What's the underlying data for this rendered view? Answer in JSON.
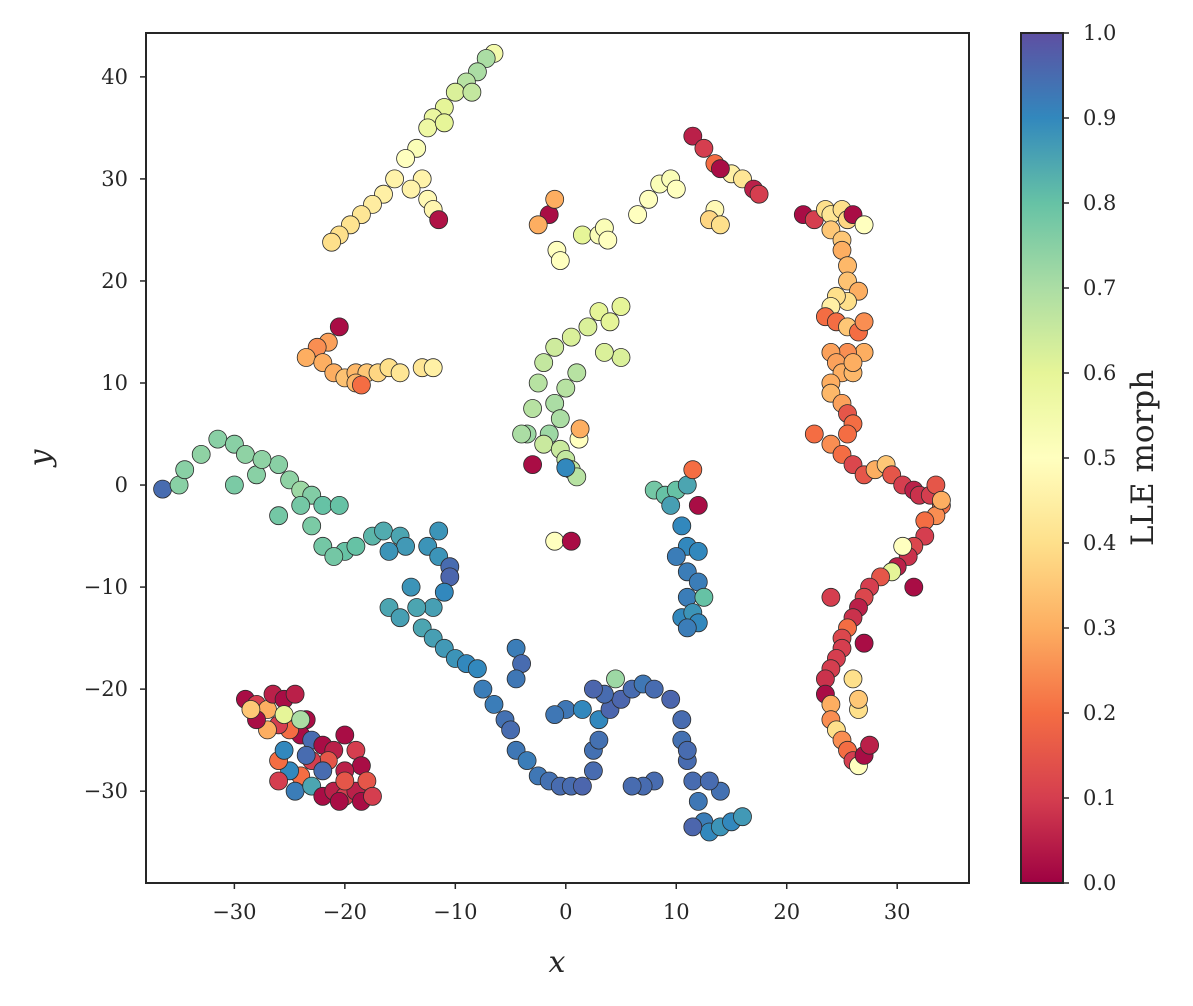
{
  "chart_data": {
    "type": "scatter",
    "xlabel": "x",
    "ylabel": "y",
    "xlim": [
      -38,
      36.5
    ],
    "ylim": [
      -39,
      44.3
    ],
    "xticks": [
      -30,
      -20,
      -10,
      0,
      10,
      20,
      30
    ],
    "yticks": [
      -30,
      -20,
      -10,
      0,
      10,
      20,
      30,
      40
    ],
    "xtick_labels": [
      "−30",
      "−20",
      "−10",
      "0",
      "10",
      "20",
      "30"
    ],
    "ytick_labels": [
      "−30",
      "−20",
      "−10",
      "0",
      "10",
      "20",
      "30",
      "40"
    ],
    "grid": false,
    "colorbar": {
      "label": "LLE morph",
      "colormap": "Spectral",
      "range": [
        0,
        1
      ],
      "ticks": [
        0,
        0.1,
        0.2,
        0.3,
        0.4,
        0.5,
        0.6,
        0.7,
        0.8,
        0.9,
        1.0
      ],
      "tick_labels": [
        "0.0",
        "0.1",
        "0.2",
        "0.3",
        "0.4",
        "0.5",
        "0.6",
        "0.7",
        "0.8",
        "0.9",
        "1.0"
      ]
    },
    "marker_edge_color": "#2b2b2b",
    "points": [
      [
        -6.5,
        42.3,
        0.55
      ],
      [
        -7.2,
        41.8,
        0.7
      ],
      [
        -8,
        40.5,
        0.7
      ],
      [
        -9,
        39.5,
        0.68
      ],
      [
        -10,
        38.5,
        0.62
      ],
      [
        -11,
        37,
        0.6
      ],
      [
        -12,
        36,
        0.58
      ],
      [
        -12.5,
        35,
        0.57
      ],
      [
        -13.5,
        33,
        0.52
      ],
      [
        -14.5,
        32,
        0.5
      ],
      [
        -15.5,
        30,
        0.46
      ],
      [
        -16.5,
        28.5,
        0.45
      ],
      [
        -17.5,
        27.5,
        0.44
      ],
      [
        -18.5,
        26.5,
        0.42
      ],
      [
        -19.5,
        25.5,
        0.41
      ],
      [
        -20.5,
        24.5,
        0.4
      ],
      [
        -21.2,
        23.8,
        0.4
      ],
      [
        -12.5,
        28,
        0.48
      ],
      [
        -12,
        27,
        0.47
      ],
      [
        -11.5,
        26,
        0.03
      ],
      [
        -13,
        30,
        0.46
      ],
      [
        -14,
        29,
        0.46
      ],
      [
        -8.5,
        38.5,
        0.66
      ],
      [
        -11,
        35.5,
        0.6
      ],
      [
        -1.5,
        26.5,
        0.02
      ],
      [
        -2.5,
        25.5,
        0.3
      ],
      [
        -1,
        28,
        0.3
      ],
      [
        -0.8,
        23,
        0.5
      ],
      [
        -0.5,
        22,
        0.5
      ],
      [
        1.5,
        24.5,
        0.6
      ],
      [
        3,
        24.5,
        0.52
      ],
      [
        3.5,
        25.2,
        0.52
      ],
      [
        3.8,
        24,
        0.5
      ],
      [
        6.5,
        26.5,
        0.5
      ],
      [
        7.5,
        28,
        0.5
      ],
      [
        8.5,
        29.5,
        0.52
      ],
      [
        9.5,
        30,
        0.52
      ],
      [
        10,
        29,
        0.5
      ],
      [
        13.5,
        27,
        0.48
      ],
      [
        13,
        26,
        0.38
      ],
      [
        14,
        25.5,
        0.4
      ],
      [
        11.5,
        34.2,
        0.05
      ],
      [
        12.5,
        33,
        0.1
      ],
      [
        13.5,
        31.5,
        0.2
      ],
      [
        15,
        30.5,
        0.45
      ],
      [
        16,
        30,
        0.42
      ],
      [
        17,
        29,
        0.05
      ],
      [
        17.5,
        28.5,
        0.1
      ],
      [
        14,
        31,
        0.02
      ],
      [
        -20.5,
        15.5,
        0.02
      ],
      [
        -21.5,
        14,
        0.28
      ],
      [
        -22.5,
        13.5,
        0.25
      ],
      [
        -23.5,
        12.5,
        0.3
      ],
      [
        -22,
        12,
        0.3
      ],
      [
        -21,
        11,
        0.3
      ],
      [
        -20,
        10.5,
        0.34
      ],
      [
        -19,
        11,
        0.32
      ],
      [
        -18,
        11,
        0.35
      ],
      [
        -17,
        11,
        0.38
      ],
      [
        -16,
        11.5,
        0.4
      ],
      [
        -15,
        11,
        0.42
      ],
      [
        -13,
        11.5,
        0.42
      ],
      [
        -12,
        11.5,
        0.45
      ],
      [
        -19,
        10,
        0.32
      ],
      [
        -18.5,
        9.8,
        0.2
      ],
      [
        -3,
        7.5,
        0.68
      ],
      [
        -2.5,
        10,
        0.68
      ],
      [
        -2,
        12,
        0.66
      ],
      [
        -1,
        13.5,
        0.64
      ],
      [
        0.5,
        14.5,
        0.62
      ],
      [
        2,
        15.5,
        0.62
      ],
      [
        3,
        17,
        0.6
      ],
      [
        4,
        16,
        0.6
      ],
      [
        5,
        17.5,
        0.6
      ],
      [
        5,
        12.5,
        0.62
      ],
      [
        3.5,
        13,
        0.62
      ],
      [
        1,
        11,
        0.68
      ],
      [
        0,
        9.5,
        0.68
      ],
      [
        -1,
        8,
        0.7
      ],
      [
        -0.5,
        6.5,
        0.7
      ],
      [
        -1.5,
        5,
        0.72
      ],
      [
        -3.5,
        5,
        0.72
      ],
      [
        -4,
        5,
        0.7
      ],
      [
        -2,
        4,
        0.65
      ],
      [
        -0.5,
        3.5,
        0.65
      ],
      [
        0,
        2.5,
        0.66
      ],
      [
        0.5,
        1.5,
        0.66
      ],
      [
        1,
        0.8,
        0.68
      ],
      [
        1.2,
        4.5,
        0.5
      ],
      [
        1.3,
        5.5,
        0.3
      ],
      [
        -3,
        2,
        0.02
      ],
      [
        0,
        1.7,
        0.9
      ],
      [
        -1,
        -5.5,
        0.5
      ],
      [
        0.5,
        -5.5,
        0.02
      ],
      [
        -36.5,
        -0.4,
        0.95
      ],
      [
        -35,
        0,
        0.75
      ],
      [
        -34.5,
        1.5,
        0.75
      ],
      [
        -33,
        3,
        0.74
      ],
      [
        -31.5,
        4.5,
        0.75
      ],
      [
        -30,
        4,
        0.75
      ],
      [
        -29,
        3,
        0.74
      ],
      [
        -28,
        1,
        0.75
      ],
      [
        -26,
        2,
        0.75
      ],
      [
        -25,
        0.5,
        0.74
      ],
      [
        -24,
        -0.5,
        0.72
      ],
      [
        -23,
        -1,
        0.76
      ],
      [
        -22,
        -2,
        0.8
      ],
      [
        -20.5,
        -2,
        0.8
      ],
      [
        -24,
        -2,
        0.78
      ],
      [
        -23,
        -4,
        0.77
      ],
      [
        -22,
        -6,
        0.78
      ],
      [
        -20,
        -6.5,
        0.8
      ],
      [
        -19,
        -6,
        0.8
      ],
      [
        -17.5,
        -5,
        0.82
      ],
      [
        -16.5,
        -4.5,
        0.84
      ],
      [
        -15,
        -5,
        0.85
      ],
      [
        -14.5,
        -6,
        0.87
      ],
      [
        -16,
        -6.5,
        0.88
      ],
      [
        -21,
        -7,
        0.78
      ],
      [
        -26,
        -3,
        0.78
      ],
      [
        -30,
        0,
        0.77
      ],
      [
        -27.5,
        2.5,
        0.74
      ],
      [
        -11.5,
        -4.5,
        0.88
      ],
      [
        -12.5,
        -6,
        0.88
      ],
      [
        -11.5,
        -7,
        0.88
      ],
      [
        -10.5,
        -8,
        0.95
      ],
      [
        -10.5,
        -9,
        0.96
      ],
      [
        -11,
        -10.5,
        0.9
      ],
      [
        -12,
        -12,
        0.86
      ],
      [
        -13.5,
        -12,
        0.85
      ],
      [
        -14,
        -10,
        0.88
      ],
      [
        -16,
        -12,
        0.85
      ],
      [
        -15,
        -13,
        0.86
      ],
      [
        -13,
        -14,
        0.85
      ],
      [
        -12,
        -15,
        0.86
      ],
      [
        -11,
        -16,
        0.87
      ],
      [
        -10,
        -17,
        0.88
      ],
      [
        -9,
        -17.5,
        0.9
      ],
      [
        -8,
        -18,
        0.9
      ],
      [
        -7.5,
        -20,
        0.92
      ],
      [
        -6.5,
        -21.5,
        0.92
      ],
      [
        -5.5,
        -23,
        0.94
      ],
      [
        -5,
        -24,
        0.95
      ],
      [
        -4.5,
        -26,
        0.93
      ],
      [
        -3.5,
        -27,
        0.92
      ],
      [
        -2.5,
        -28.5,
        0.93
      ],
      [
        -1.5,
        -29,
        0.94
      ],
      [
        -0.5,
        -29.5,
        0.95
      ],
      [
        0.5,
        -29.5,
        0.95
      ],
      [
        1.5,
        -29.5,
        0.96
      ],
      [
        2.5,
        -28,
        0.95
      ],
      [
        2.5,
        -26,
        0.94
      ],
      [
        3,
        -25,
        0.94
      ],
      [
        3,
        -23,
        0.9
      ],
      [
        4,
        -22,
        0.96
      ],
      [
        5,
        -21,
        0.96
      ],
      [
        6,
        -20,
        0.95
      ],
      [
        7,
        -19.5,
        0.93
      ],
      [
        8,
        -20,
        0.95
      ],
      [
        9.5,
        -21,
        0.96
      ],
      [
        10.5,
        -23,
        0.95
      ],
      [
        10.5,
        -25,
        0.94
      ],
      [
        11,
        -27,
        0.95
      ],
      [
        11.5,
        -29,
        0.95
      ],
      [
        12,
        -31,
        0.93
      ],
      [
        12.5,
        -33,
        0.92
      ],
      [
        13,
        -34,
        0.9
      ],
      [
        14,
        -33.5,
        0.88
      ],
      [
        15,
        -33,
        0.9
      ],
      [
        16,
        -32.5,
        0.87
      ],
      [
        14,
        -30,
        0.94
      ],
      [
        13,
        -29,
        0.95
      ],
      [
        8,
        -29,
        0.95
      ],
      [
        7,
        -29.5,
        0.95
      ],
      [
        6,
        -29.5,
        0.95
      ],
      [
        11.5,
        -33.5,
        0.96
      ],
      [
        -4.5,
        -16,
        0.92
      ],
      [
        -4,
        -17.5,
        0.95
      ],
      [
        -4.5,
        -19,
        0.93
      ],
      [
        0,
        -22,
        0.93
      ],
      [
        1.5,
        -22,
        0.9
      ],
      [
        4.5,
        -19,
        0.72
      ],
      [
        3.5,
        -20.5,
        0.95
      ],
      [
        -1,
        -22.5,
        0.93
      ],
      [
        2.5,
        -20,
        0.96
      ],
      [
        11,
        -26,
        0.95
      ],
      [
        8,
        -0.5,
        0.78
      ],
      [
        9,
        -1,
        0.8
      ],
      [
        10,
        -0.5,
        0.8
      ],
      [
        11,
        0,
        0.85
      ],
      [
        11.5,
        1.5,
        0.2
      ],
      [
        12,
        -2,
        0.02
      ],
      [
        9.5,
        -2,
        0.86
      ],
      [
        10.5,
        -4,
        0.9
      ],
      [
        11,
        -6,
        0.9
      ],
      [
        12,
        -6.5,
        0.9
      ],
      [
        10,
        -7,
        0.92
      ],
      [
        11,
        -8.5,
        0.92
      ],
      [
        12,
        -9.5,
        0.92
      ],
      [
        11,
        -11,
        0.92
      ],
      [
        10.5,
        -13,
        0.9
      ],
      [
        11.5,
        -12.5,
        0.88
      ],
      [
        12.5,
        -11,
        0.8
      ],
      [
        12,
        -13.5,
        0.9
      ],
      [
        11,
        -14,
        0.92
      ],
      [
        -29,
        -21,
        0.02
      ],
      [
        -28,
        -21.5,
        0.1
      ],
      [
        -27,
        -22,
        0.3
      ],
      [
        -26.5,
        -20.5,
        0.05
      ],
      [
        -25.5,
        -21,
        0.02
      ],
      [
        -24.5,
        -20.5,
        0.05
      ],
      [
        -23.5,
        -23,
        0.02
      ],
      [
        -24,
        -24.5,
        0.02
      ],
      [
        -25,
        -24,
        0.2
      ],
      [
        -26,
        -23.5,
        0.1
      ],
      [
        -27,
        -24,
        0.3
      ],
      [
        -28,
        -23,
        0.02
      ],
      [
        -28.5,
        -22,
        0.35
      ],
      [
        -25.5,
        -22.5,
        0.6
      ],
      [
        -24,
        -23,
        0.7
      ],
      [
        -23,
        -25,
        0.95
      ],
      [
        -22,
        -25.5,
        0.02
      ],
      [
        -21,
        -26,
        0.05
      ],
      [
        -20,
        -24.5,
        0.02
      ],
      [
        -19,
        -26,
        0.1
      ],
      [
        -18.5,
        -27.5,
        0.02
      ],
      [
        -20,
        -28,
        0.05
      ],
      [
        -21.5,
        -27,
        0.15
      ],
      [
        -23,
        -27,
        0.1
      ],
      [
        -24,
        -28.5,
        0.2
      ],
      [
        -25,
        -28,
        0.9
      ],
      [
        -26,
        -29,
        0.1
      ],
      [
        -26,
        -27,
        0.2
      ],
      [
        -24.5,
        -30,
        0.92
      ],
      [
        -23,
        -29.5,
        0.85
      ],
      [
        -22,
        -30.5,
        0.02
      ],
      [
        -21,
        -30,
        0.05
      ],
      [
        -20,
        -30.5,
        0.1
      ],
      [
        -19,
        -30,
        0.05
      ],
      [
        -18,
        -29,
        0.15
      ],
      [
        -18.5,
        -31,
        0.02
      ],
      [
        -20,
        -29,
        0.15
      ],
      [
        -22,
        -28,
        0.95
      ],
      [
        -23.5,
        -26.5,
        0.95
      ],
      [
        -25.5,
        -26,
        0.9
      ],
      [
        -20.5,
        -31,
        0.02
      ],
      [
        -17.5,
        -30.5,
        0.1
      ],
      [
        21.5,
        26.5,
        0.02
      ],
      [
        22.5,
        26,
        0.1
      ],
      [
        23.5,
        27,
        0.4
      ],
      [
        24,
        26.5,
        0.42
      ],
      [
        25,
        27,
        0.4
      ],
      [
        25.5,
        26,
        0.38
      ],
      [
        26,
        26.5,
        0.02
      ],
      [
        27,
        25.5,
        0.5
      ],
      [
        24,
        25,
        0.35
      ],
      [
        25,
        24,
        0.35
      ],
      [
        25,
        23,
        0.3
      ],
      [
        25.5,
        21.5,
        0.32
      ],
      [
        25.5,
        20,
        0.34
      ],
      [
        26.5,
        19,
        0.3
      ],
      [
        25.5,
        18,
        0.4
      ],
      [
        24.5,
        18.5,
        0.4
      ],
      [
        24,
        17.5,
        0.45
      ],
      [
        23.5,
        16.5,
        0.2
      ],
      [
        24.5,
        16,
        0.2
      ],
      [
        25.5,
        15.5,
        0.35
      ],
      [
        26.5,
        15,
        0.2
      ],
      [
        27,
        13,
        0.3
      ],
      [
        25.5,
        13,
        0.25
      ],
      [
        24,
        13,
        0.28
      ],
      [
        24.5,
        12,
        0.28
      ],
      [
        25,
        11,
        0.3
      ],
      [
        24,
        10,
        0.3
      ],
      [
        24,
        9,
        0.32
      ],
      [
        25,
        8,
        0.28
      ],
      [
        25.5,
        7,
        0.15
      ],
      [
        26,
        6,
        0.2
      ],
      [
        25.5,
        5,
        0.2
      ],
      [
        24,
        4,
        0.25
      ],
      [
        22.5,
        5,
        0.2
      ],
      [
        25,
        3,
        0.2
      ],
      [
        26,
        2,
        0.12
      ],
      [
        27,
        1,
        0.15
      ],
      [
        28,
        1.5,
        0.3
      ],
      [
        29,
        2,
        0.35
      ],
      [
        29.5,
        1,
        0.15
      ],
      [
        30.5,
        0,
        0.1
      ],
      [
        31.5,
        -0.5,
        0.05
      ],
      [
        32,
        -1,
        0.08
      ],
      [
        33,
        -1,
        0.1
      ],
      [
        33.5,
        0,
        0.15
      ],
      [
        34,
        -2,
        0.2
      ],
      [
        33.5,
        -3,
        0.25
      ],
      [
        32.5,
        -3.5,
        0.2
      ],
      [
        32.5,
        -5,
        0.1
      ],
      [
        31.5,
        -6,
        0.12
      ],
      [
        31,
        -7,
        0.08
      ],
      [
        30,
        -8,
        0.05
      ],
      [
        29.5,
        -8.5,
        0.6
      ],
      [
        28.5,
        -9,
        0.15
      ],
      [
        27.5,
        -10,
        0.1
      ],
      [
        27,
        -11,
        0.12
      ],
      [
        26.5,
        -12,
        0.05
      ],
      [
        26,
        -13,
        0.08
      ],
      [
        25.5,
        -14,
        0.2
      ],
      [
        25,
        -15,
        0.12
      ],
      [
        25,
        -16,
        0.1
      ],
      [
        24.5,
        -17,
        0.1
      ],
      [
        24,
        -18,
        0.1
      ],
      [
        23.5,
        -19,
        0.08
      ],
      [
        23.5,
        -20.5,
        0.02
      ],
      [
        24,
        -21.5,
        0.3
      ],
      [
        24,
        -23,
        0.25
      ],
      [
        24.5,
        -24,
        0.4
      ],
      [
        25,
        -25,
        0.25
      ],
      [
        25.5,
        -26,
        0.2
      ],
      [
        26,
        -27,
        0.1
      ],
      [
        26.5,
        -27.5,
        0.5
      ],
      [
        27,
        -26.5,
        0.02
      ],
      [
        27.5,
        -25.5,
        0.05
      ],
      [
        26.5,
        -22,
        0.4
      ],
      [
        26.5,
        -21,
        0.35
      ],
      [
        26,
        -19,
        0.4
      ],
      [
        27,
        -15.5,
        0.02
      ],
      [
        24,
        -11,
        0.1
      ],
      [
        31.5,
        -10,
        0.02
      ],
      [
        30.5,
        -6,
        0.5
      ],
      [
        34,
        -1.5,
        0.3
      ],
      [
        26,
        11,
        0.32
      ],
      [
        27,
        16,
        0.25
      ],
      [
        26,
        12,
        0.3
      ]
    ]
  }
}
